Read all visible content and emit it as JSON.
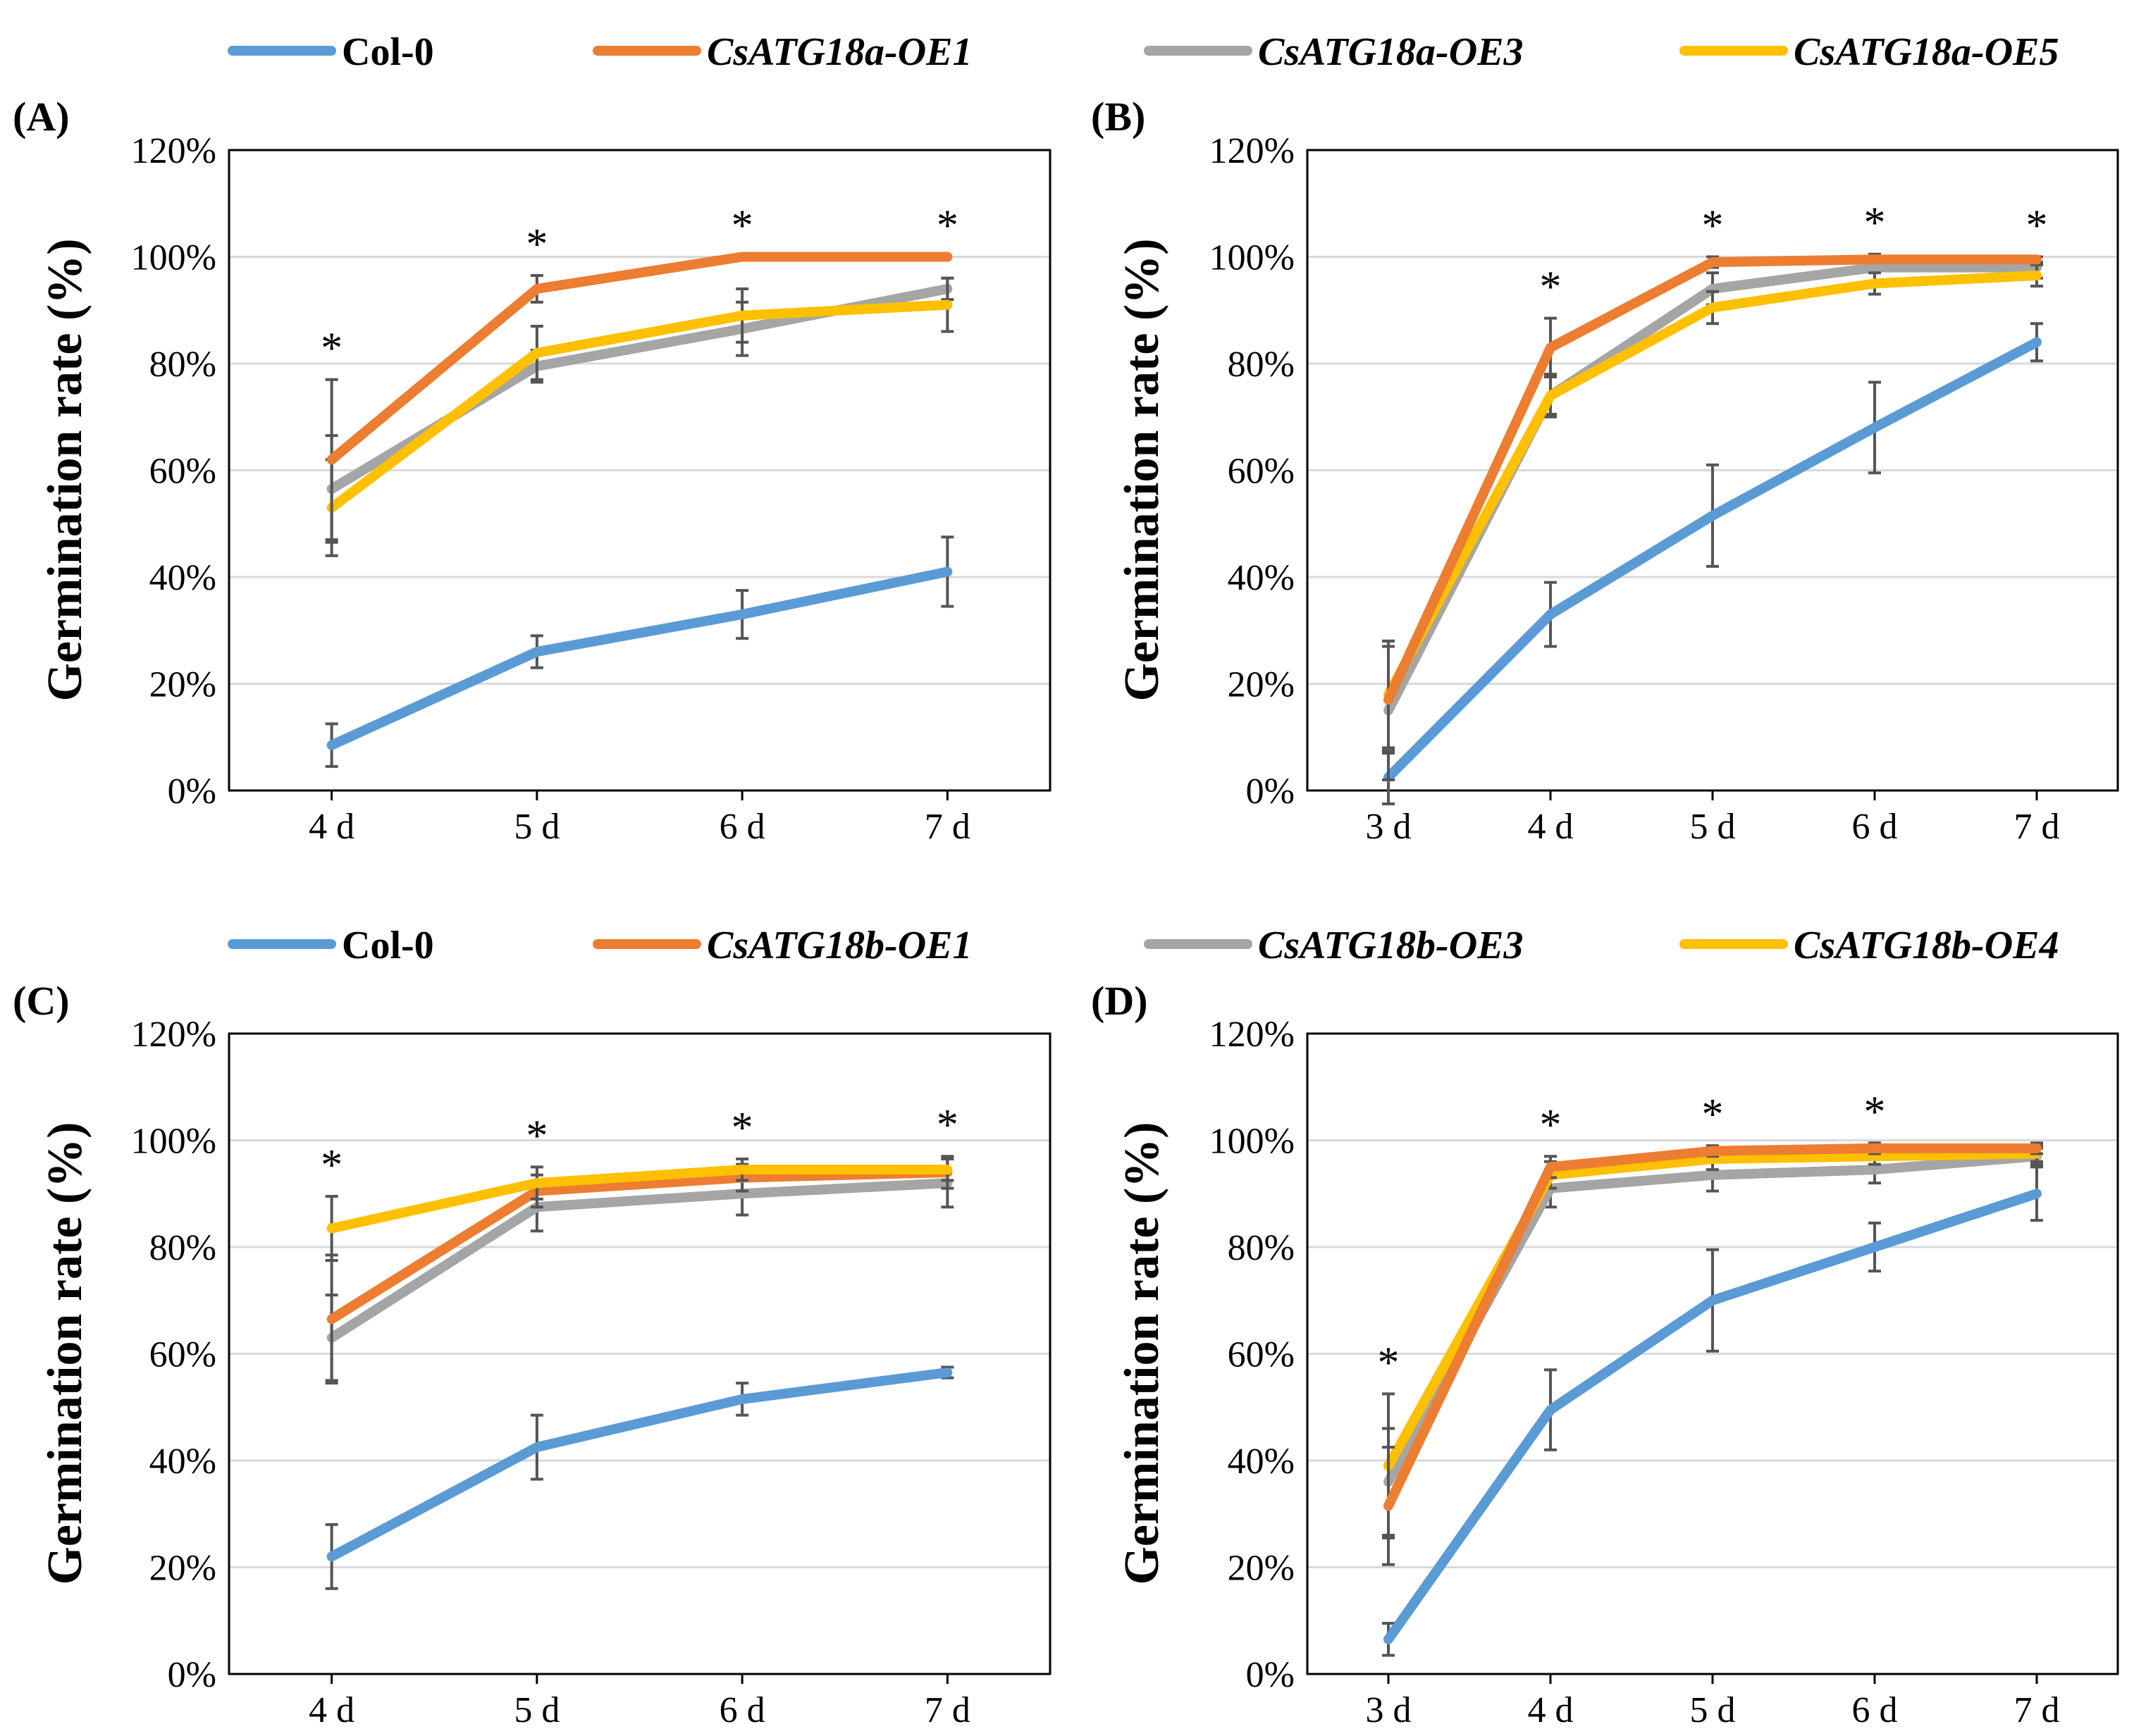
{
  "figure": {
    "legends": [
      {
        "name": "legend-top",
        "entries": [
          {
            "label": "Col-0",
            "italic": false,
            "color": "#5b9bd5"
          },
          {
            "label": "CsATG18a-OE1",
            "italic": true,
            "color": "#ed7d31"
          },
          {
            "label": "CsATG18a-OE3",
            "italic": true,
            "color": "#a5a5a5"
          },
          {
            "label": "CsATG18a-OE5",
            "italic": true,
            "color": "#ffc000"
          }
        ]
      },
      {
        "name": "legend-bottom",
        "entries": [
          {
            "label": "Col-0",
            "italic": false,
            "color": "#5b9bd5"
          },
          {
            "label": "CsATG18b-OE1",
            "italic": true,
            "color": "#ed7d31"
          },
          {
            "label": "CsATG18b-OE3",
            "italic": true,
            "color": "#a5a5a5"
          },
          {
            "label": "CsATG18b-OE4",
            "italic": true,
            "color": "#ffc000"
          }
        ]
      }
    ]
  },
  "chart_data": [
    {
      "panel": "(A)",
      "type": "line",
      "ylabel": "Germination rate (%)",
      "yticks": [
        "0%",
        "20%",
        "40%",
        "60%",
        "80%",
        "100%",
        "120%"
      ],
      "ylim": [
        0,
        120
      ],
      "categories": [
        "4 d",
        "5 d",
        "6 d",
        "7 d"
      ],
      "asterisks": [
        "*",
        "*",
        "*",
        "*"
      ],
      "series": [
        {
          "name": "Col-0",
          "color": "#5b9bd5",
          "values": [
            8.5,
            26,
            33,
            41
          ],
          "errors": [
            4,
            3,
            4.5,
            6.5
          ]
        },
        {
          "name": "CsATG18a-OE3",
          "color": "#a5a5a5",
          "values": [
            56.5,
            79.5,
            86.5,
            94
          ],
          "errors": [
            10,
            3,
            5,
            2
          ]
        },
        {
          "name": "CsATG18a-OE5",
          "color": "#ffc000",
          "values": [
            53,
            82,
            89,
            91
          ],
          "errors": [
            9,
            5,
            5,
            5
          ]
        },
        {
          "name": "CsATG18a-OE1",
          "color": "#ed7d31",
          "values": [
            62,
            94,
            100,
            100
          ],
          "errors": [
            15,
            2.5,
            0,
            0
          ]
        }
      ]
    },
    {
      "panel": "(B)",
      "type": "line",
      "ylabel": "Germination rate (%)",
      "yticks": [
        "0%",
        "20%",
        "40%",
        "60%",
        "80%",
        "100%",
        "120%"
      ],
      "ylim": [
        0,
        120
      ],
      "categories": [
        "3 d",
        "4 d",
        "5 d",
        "6 d",
        "7 d"
      ],
      "asterisks": [
        "",
        "*",
        "*",
        "*",
        "*"
      ],
      "series": [
        {
          "name": "Col-0",
          "color": "#5b9bd5",
          "values": [
            2.5,
            33,
            51.5,
            68,
            84
          ],
          "errors": [
            5,
            6,
            9.5,
            8.5,
            3.5
          ]
        },
        {
          "name": "CsATG18a-OE3",
          "color": "#a5a5a5",
          "values": [
            15,
            74,
            94,
            98,
            98
          ],
          "errors": [
            13,
            3.5,
            3,
            2.5,
            2
          ]
        },
        {
          "name": "CsATG18a-OE5",
          "color": "#ffc000",
          "values": [
            18,
            74,
            90.5,
            95,
            96.5
          ],
          "errors": [
            10,
            4,
            3,
            2,
            2
          ]
        },
        {
          "name": "CsATG18a-OE1",
          "color": "#ed7d31",
          "values": [
            17,
            83,
            99,
            99.5,
            99.5
          ],
          "errors": [
            10,
            5.5,
            1,
            0.5,
            0.5
          ]
        }
      ]
    },
    {
      "panel": "(C)",
      "type": "line",
      "ylabel": "Germination rate (%)",
      "yticks": [
        "0%",
        "20%",
        "40%",
        "60%",
        "80%",
        "100%",
        "120%"
      ],
      "ylim": [
        0,
        120
      ],
      "categories": [
        "4 d",
        "5 d",
        "6 d",
        "7 d"
      ],
      "asterisks": [
        "*",
        "*",
        "*",
        "*"
      ],
      "series": [
        {
          "name": "Col-0",
          "color": "#5b9bd5",
          "values": [
            22,
            42.5,
            51.5,
            56.5
          ],
          "errors": [
            6,
            6,
            3,
            1
          ]
        },
        {
          "name": "CsATG18b-OE3",
          "color": "#a5a5a5",
          "values": [
            63,
            87.5,
            90,
            92
          ],
          "errors": [
            8,
            4.5,
            4,
            4.5
          ]
        },
        {
          "name": "CsATG18b-OE1",
          "color": "#ed7d31",
          "values": [
            66.5,
            90.5,
            93,
            94
          ],
          "errors": [
            12,
            3,
            2.5,
            3
          ]
        },
        {
          "name": "CsATG18b-OE4",
          "color": "#ffc000",
          "values": [
            83.5,
            92,
            94.5,
            94.5
          ],
          "errors": [
            6,
            3,
            2,
            2
          ]
        }
      ]
    },
    {
      "panel": "(D)",
      "type": "line",
      "ylabel": "Germination rate (%)",
      "yticks": [
        "0%",
        "20%",
        "40%",
        "60%",
        "80%",
        "100%",
        "120%"
      ],
      "ylim": [
        0,
        120
      ],
      "categories": [
        "3 d",
        "4 d",
        "5 d",
        "6 d",
        "7 d"
      ],
      "asterisks": [
        "*",
        "*",
        "*",
        "*",
        ""
      ],
      "series": [
        {
          "name": "Col-0",
          "color": "#5b9bd5",
          "values": [
            6.5,
            49.5,
            70,
            80,
            90
          ],
          "errors": [
            3,
            7.5,
            9.5,
            4.5,
            5
          ]
        },
        {
          "name": "CsATG18b-OE3",
          "color": "#a5a5a5",
          "values": [
            36,
            91,
            93.5,
            94.5,
            97
          ],
          "errors": [
            10,
            3.5,
            3,
            2.5,
            1.5
          ]
        },
        {
          "name": "CsATG18b-OE4",
          "color": "#ffc000",
          "values": [
            39,
            93.5,
            96.5,
            97,
            97.5
          ],
          "errors": [
            13.5,
            2.5,
            2,
            1.5,
            1.5
          ]
        },
        {
          "name": "CsATG18b-OE1",
          "color": "#ed7d31",
          "values": [
            31.5,
            95,
            98,
            98.5,
            98.5
          ],
          "errors": [
            11,
            2,
            1,
            1,
            1
          ]
        }
      ]
    }
  ]
}
